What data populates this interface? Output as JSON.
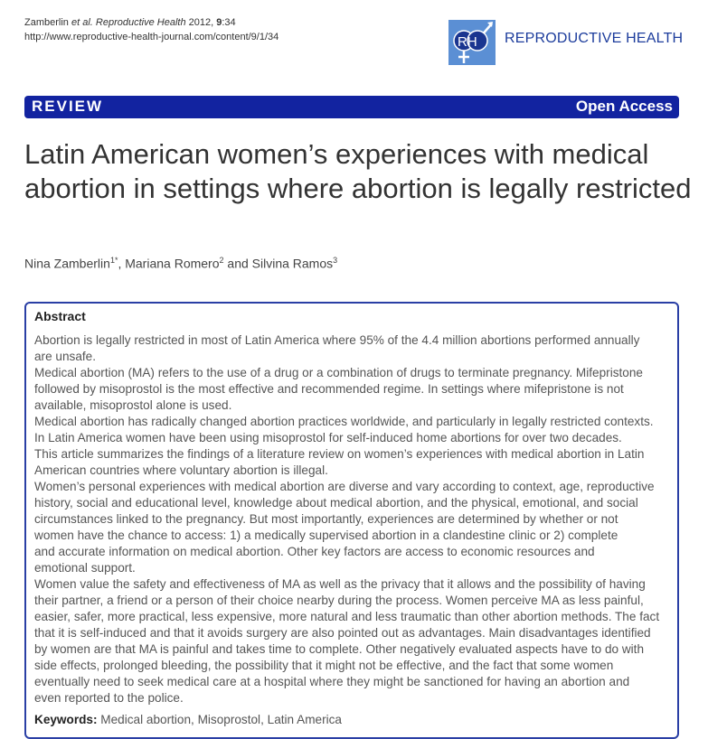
{
  "header": {
    "citation_authors": "Zamberlin",
    "citation_etal": "et al.",
    "citation_journal": "Reproductive Health",
    "citation_year": "2012,",
    "citation_volume": "9",
    "citation_article": ":34",
    "url": "http://www.reproductive-health-journal.com/content/9/1/34",
    "logo_text": "RH",
    "journal_name": "REPRODUCTIVE HEALTH",
    "brand_color": "#1223a0"
  },
  "banner": {
    "type": "REVIEW",
    "access": "Open Access"
  },
  "title": "Latin American women’s experiences with medical abortion in settings where abortion is legally restricted",
  "authors": [
    {
      "name": "Nina Zamberlin",
      "sup": "1*"
    },
    {
      "name": "Mariana Romero",
      "sup": "2"
    },
    {
      "name": "Silvina Ramos",
      "sup": "3"
    }
  ],
  "authors_sep": [
    ", ",
    " and "
  ],
  "abstract": {
    "heading": "Abstract",
    "lines": [
      "Abortion is legally restricted in most of Latin America where 95% of the 4.4 million abortions performed annually",
      "are unsafe.",
      "Medical abortion (MA) refers to the use of a drug or a combination of drugs to terminate pregnancy. Mifepristone",
      "followed by misoprostol is the most effective and recommended regime. In settings where mifepristone is not",
      "available, misoprostol alone is used.",
      "Medical abortion has radically changed abortion practices worldwide, and particularly in legally restricted contexts.",
      "In Latin America women have been using misoprostol for self-induced home abortions for over two decades.",
      "This article summarizes the findings of a literature review on women’s experiences with medical abortion in Latin",
      "American countries where voluntary abortion is illegal.",
      "Women’s personal experiences with medical abortion are diverse and vary according to context, age, reproductive",
      "history, social and educational level, knowledge about medical abortion, and the physical, emotional, and social",
      "circumstances linked to the pregnancy. But most importantly, experiences are determined by whether or not",
      "women have the chance to access: 1) a medically supervised abortion in a clandestine clinic or 2) complete",
      "and accurate information on medical abortion. Other key factors are access to economic resources and",
      "emotional support.",
      "Women value the safety and effectiveness of MA as well as the privacy that it allows and the possibility of having",
      "their partner, a friend or a person of their choice nearby during the process. Women perceive MA as less painful,",
      "easier, safer, more practical, less expensive, more natural and less traumatic than other abortion methods. The fact",
      "that it is self-induced and that it avoids surgery are also pointed out as advantages. Main disadvantages identified",
      "by women are that MA is painful and takes time to complete. Other negatively evaluated aspects have to do with",
      "side effects, prolonged bleeding, the possibility that it might not be effective, and the fact that some women",
      "eventually need to seek medical care at a hospital where they might be sanctioned for having an abortion and",
      "even reported to the police."
    ],
    "keywords_label": "Keywords:",
    "keywords": "Medical abortion, Misoprostol, Latin America"
  }
}
